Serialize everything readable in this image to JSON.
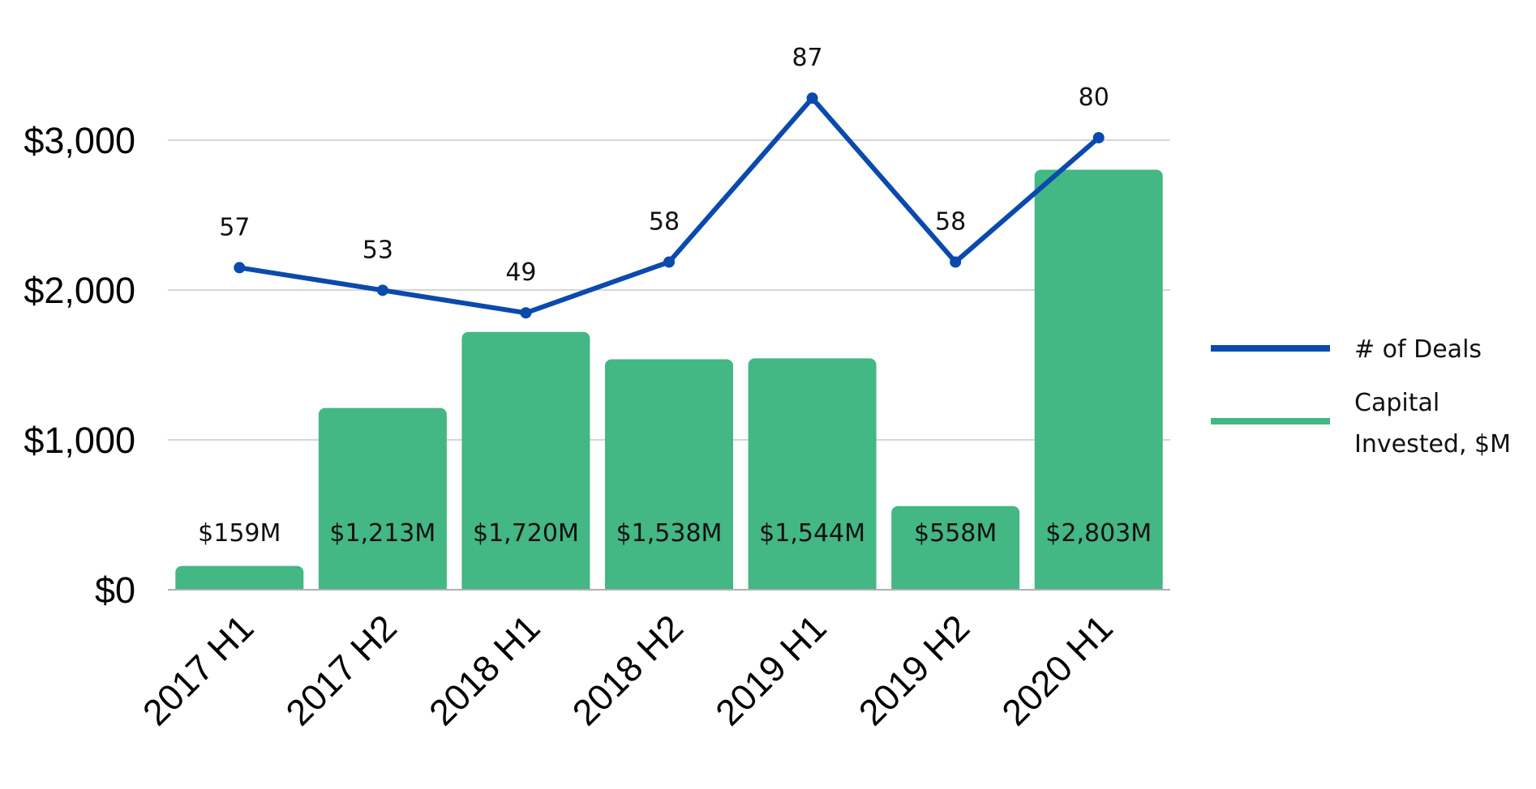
{
  "chart_data": {
    "type": "bar",
    "categories": [
      "2017 H1",
      "2017 H2",
      "2018 H1",
      "2018 H2",
      "2019 H1",
      "2019 H2",
      "2020 H1"
    ],
    "series": [
      {
        "name": "Capital Invested, $M",
        "type": "bar",
        "axis": "left",
        "color": "#43b784",
        "values": [
          159,
          1213,
          1720,
          1538,
          1544,
          558,
          2803
        ],
        "labels": [
          "$159M",
          "$1,213M",
          "$1,720M",
          "$1,538M",
          "$1,544M",
          "$558M",
          "$2,803M"
        ]
      },
      {
        "name": "# of Deals",
        "type": "line",
        "axis": "right",
        "color": "#0a4aad",
        "values": [
          57,
          53,
          49,
          58,
          87,
          58,
          80
        ],
        "labels": [
          "57",
          "53",
          "49",
          "58",
          "87",
          "58",
          "80"
        ]
      }
    ],
    "y_axis": {
      "ylim": [
        0,
        3000
      ],
      "ticks": [
        0,
        1000,
        2000,
        3000
      ],
      "tick_labels": [
        "$0",
        "$1,000",
        "$2,000",
        "$3,000"
      ]
    },
    "secondary_axis": {
      "ylim": [
        0,
        80
      ],
      "shown": false
    },
    "grid": true,
    "legend": {
      "position": "right",
      "items": [
        {
          "label_lines": [
            "# of Deals"
          ],
          "color": "#0a4aad"
        },
        {
          "label_lines": [
            "Capital",
            "Invested, $M"
          ],
          "color": "#43b784"
        }
      ]
    },
    "colors": {
      "grid": "#c8c8c8",
      "axis": "#b0b0b0"
    }
  }
}
